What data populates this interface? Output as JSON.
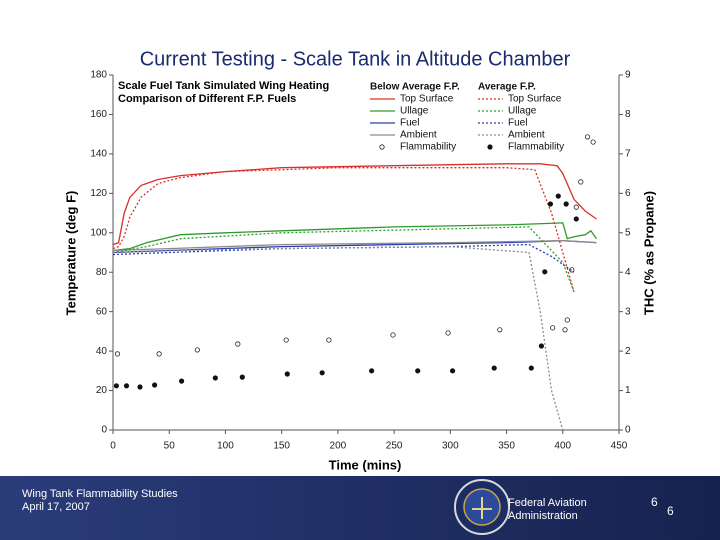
{
  "slide": {
    "title": "Current Testing - Scale Tank in Altitude Chamber",
    "footer_lines": [
      "Wing Tank Flammability Studies",
      "April 17, 2007"
    ],
    "agency_lines": [
      "Federal Aviation",
      "Administration"
    ],
    "page_numbers": [
      "6",
      "6"
    ]
  },
  "chart_data": {
    "type": "line",
    "title": "Scale Fuel Tank Simulated Wing Heating",
    "subtitle": "Comparison of Different F.P. Fuels",
    "x_label": "Time (mins)",
    "y_label": "Temperature (deg F)",
    "y2_label": "THC (% as Propane)",
    "xlim": [
      0,
      450
    ],
    "xticks": [
      0,
      50,
      100,
      150,
      200,
      250,
      300,
      350,
      400,
      450
    ],
    "ylim": [
      0,
      180
    ],
    "yticks": [
      0,
      20,
      40,
      60,
      80,
      100,
      120,
      140,
      160,
      180
    ],
    "y2lim": [
      0,
      9
    ],
    "y2ticks": [
      0,
      1,
      2,
      3,
      4,
      5,
      6,
      7,
      8,
      9
    ],
    "series_groups": [
      {
        "name": "Below Average F.P.",
        "style": "solid",
        "series": [
          {
            "name": "Top Surface",
            "color": "#d9302a",
            "marker": "line",
            "x": [
              0,
              5,
              10,
              15,
              25,
              40,
              60,
              100,
              150,
              200,
              250,
              300,
              350,
              380,
              395,
              400,
              410,
              420,
              430
            ],
            "values": [
              94,
              95,
              110,
              118,
              124,
              127,
              129,
              131,
              133,
              133.5,
              134,
              134.5,
              135,
              135,
              134,
              130,
              117,
              111,
              107
            ]
          },
          {
            "name": "Ullage",
            "color": "#2e9a2e",
            "marker": "line",
            "x": [
              0,
              15,
              30,
              60,
              100,
              150,
              250,
              350,
              400,
              404,
              410,
              420,
              425,
              430
            ],
            "values": [
              91,
              92,
              95,
              99,
              100,
              101,
              103,
              104,
              105,
              97,
              98,
              99,
              101,
              97
            ]
          },
          {
            "name": "Fuel",
            "color": "#2b3fb0",
            "marker": "line",
            "x": [
              0,
              50,
              150,
              250,
              350,
              400,
              430
            ],
            "values": [
              90,
              91,
              93,
              94,
              95,
              96,
              95
            ]
          },
          {
            "name": "Ambient",
            "color": "#8c8c8c",
            "marker": "line",
            "x": [
              0,
              50,
              150,
              300,
              400,
              430
            ],
            "values": [
              91,
              92,
              94,
              95,
              96,
              95
            ]
          },
          {
            "name": "Flammability",
            "color": "#222222",
            "marker": "open-circle",
            "axis": "y2",
            "x": [
              4,
              41,
              75,
              111,
              154,
              192,
              249,
              298,
              344,
              391,
              402,
              404,
              408,
              412,
              416,
              422,
              427
            ],
            "values": [
              1.93,
              1.93,
              2.03,
              2.18,
              2.28,
              2.28,
              2.41,
              2.46,
              2.54,
              2.59,
              2.54,
              2.79,
              4.06,
              5.65,
              6.29,
              7.43,
              7.3
            ]
          }
        ]
      },
      {
        "name": "Average F.P.",
        "style": "dotted",
        "series": [
          {
            "name": "Top Surface",
            "color": "#d9302a",
            "marker": "line",
            "x": [
              0,
              5,
              10,
              15,
              25,
              40,
              60,
              100,
              150,
              200,
              250,
              300,
              350,
              375,
              390,
              400,
              410
            ],
            "values": [
              92,
              93,
              98,
              108,
              118,
              125,
              128,
              131,
              132,
              133,
              133,
              133,
              133,
              132,
              110,
              90,
              70
            ]
          },
          {
            "name": "Ullage",
            "color": "#2e9a2e",
            "marker": "line",
            "x": [
              0,
              30,
              60,
              150,
              300,
              370,
              400,
              410
            ],
            "values": [
              90,
              93,
              97,
              100,
              102,
              103,
              85,
              70
            ]
          },
          {
            "name": "Fuel",
            "color": "#2b3fb0",
            "marker": "line",
            "x": [
              0,
              50,
              150,
              300,
              370,
              390,
              410
            ],
            "values": [
              89,
              90,
              92,
              93,
              94,
              88,
              80
            ]
          },
          {
            "name": "Ambient",
            "color": "#8c8c8c",
            "marker": "line",
            "x": [
              0,
              50,
              150,
              300,
              370,
              380,
              390,
              400
            ],
            "values": [
              90,
              91,
              92,
              93,
              90,
              60,
              20,
              0
            ]
          },
          {
            "name": "Flammability",
            "color": "#111111",
            "marker": "filled-circle",
            "axis": "y2",
            "x": [
              3,
              12,
              24,
              37,
              61,
              91,
              115,
              155,
              186,
              230,
              271,
              302,
              339,
              372,
              381,
              384,
              389,
              396,
              403,
              412
            ],
            "values": [
              1.12,
              1.12,
              1.09,
              1.14,
              1.24,
              1.32,
              1.34,
              1.42,
              1.45,
              1.5,
              1.5,
              1.5,
              1.57,
              1.57,
              2.13,
              4.01,
              5.73,
              5.93,
              5.73,
              5.35
            ]
          }
        ]
      }
    ]
  }
}
